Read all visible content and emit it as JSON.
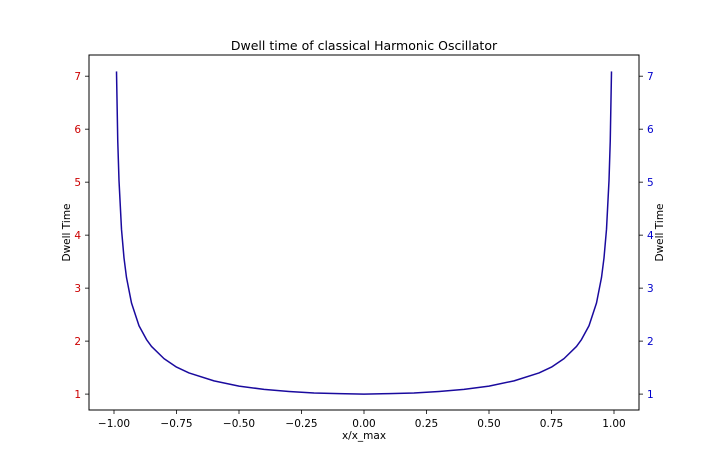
{
  "chart_data": {
    "type": "line",
    "title": "Dwell time of classical Harmonic Oscillator",
    "xlabel": "x/x_max",
    "ylabel_left": "Dwell Time",
    "ylabel_right": "Dwell Time",
    "xlim": [
      -1.1,
      1.1
    ],
    "ylim": [
      0.7,
      7.4
    ],
    "x_ticks": [
      -1.0,
      -0.75,
      -0.5,
      -0.25,
      0.0,
      0.25,
      0.5,
      0.75,
      1.0
    ],
    "x_tick_labels": [
      "−1.00",
      "−0.75",
      "−0.50",
      "−0.25",
      "0.00",
      "0.25",
      "0.50",
      "0.75",
      "1.00"
    ],
    "y_ticks": [
      1,
      2,
      3,
      4,
      5,
      6,
      7
    ],
    "y_tick_labels": [
      "1",
      "2",
      "3",
      "4",
      "5",
      "6",
      "7"
    ],
    "left_tick_color": "#cc0000",
    "right_tick_color": "#0000cc",
    "grid": false,
    "series": [
      {
        "color": "#1a0a9e",
        "x": [
          -0.99,
          -0.985,
          -0.98,
          -0.97,
          -0.96,
          -0.95,
          -0.93,
          -0.9,
          -0.87,
          -0.85,
          -0.8,
          -0.75,
          -0.7,
          -0.6,
          -0.5,
          -0.4,
          -0.3,
          -0.2,
          -0.1,
          0.0,
          0.1,
          0.2,
          0.3,
          0.4,
          0.5,
          0.6,
          0.7,
          0.75,
          0.8,
          0.85,
          0.87,
          0.9,
          0.93,
          0.95,
          0.96,
          0.97,
          0.98,
          0.985,
          0.99
        ],
        "y": [
          7.09,
          5.78,
          5.03,
          4.11,
          3.57,
          3.2,
          2.72,
          2.29,
          2.03,
          1.9,
          1.67,
          1.51,
          1.4,
          1.25,
          1.15,
          1.09,
          1.05,
          1.02,
          1.01,
          1.0,
          1.01,
          1.02,
          1.05,
          1.09,
          1.15,
          1.25,
          1.4,
          1.51,
          1.67,
          1.9,
          2.03,
          2.29,
          2.72,
          3.2,
          3.57,
          4.11,
          5.03,
          5.78,
          7.09
        ]
      }
    ]
  }
}
